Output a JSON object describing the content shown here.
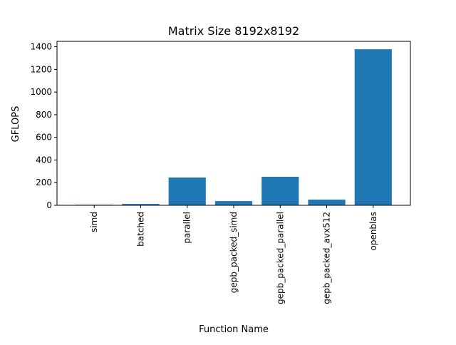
{
  "chart_data": {
    "type": "bar",
    "title": "Matrix Size 8192x8192",
    "xlabel": "Function Name",
    "ylabel": "GFLOPS",
    "categories": [
      "simd",
      "batched",
      "parallel",
      "gepb_packed_simd",
      "gepb_packed_parallel",
      "gepb_packed_avx512",
      "openblas"
    ],
    "values": [
      5,
      12,
      245,
      37,
      252,
      50,
      1378
    ],
    "ylim": [
      0,
      1448
    ],
    "yticks": [
      0,
      200,
      400,
      600,
      800,
      1000,
      1200,
      1400
    ],
    "grid": false,
    "bar_color": "#1f77b4"
  }
}
